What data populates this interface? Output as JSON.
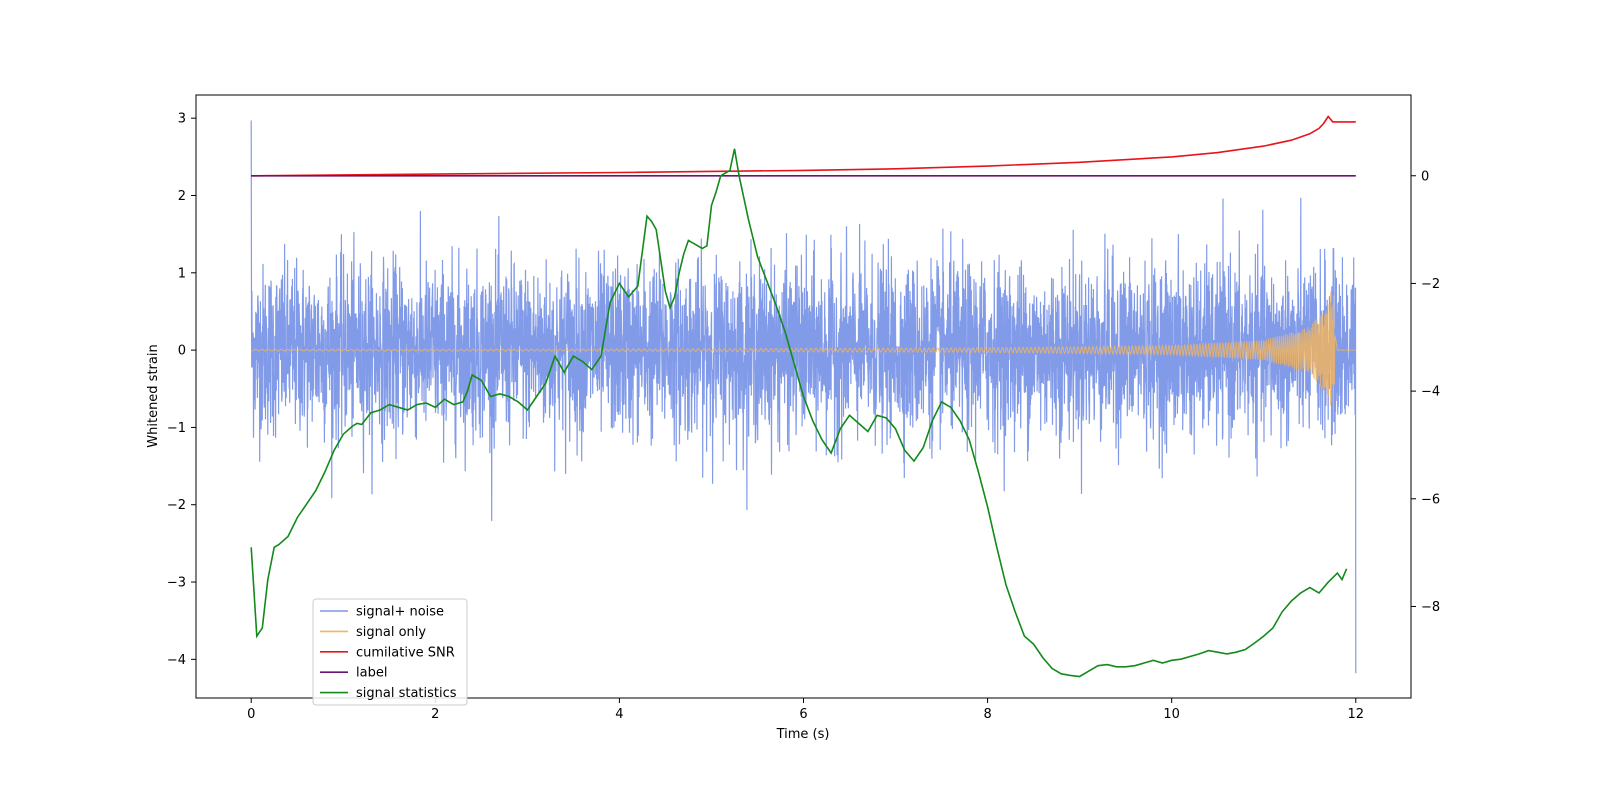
{
  "chart_data": {
    "type": "line",
    "title": "",
    "xlabel": "Time (s)",
    "ylabel_left": "Whitened strain",
    "ylabel_right": "",
    "xlim": [
      -0.6,
      12.6
    ],
    "ylim_left": [
      -4.5,
      3.3
    ],
    "ylim_right": [
      -9.7,
      1.5
    ],
    "x_ticks": [
      0,
      2,
      4,
      6,
      8,
      10,
      12
    ],
    "x_tick_labels": [
      "0",
      "2",
      "4",
      "6",
      "8",
      "10",
      "12"
    ],
    "y_left_ticks": [
      3,
      2,
      1,
      0,
      -1,
      -2,
      -3,
      -4
    ],
    "y_left_tick_labels": [
      "3",
      "2",
      "1",
      "0",
      "−1",
      "−2",
      "−3",
      "−4"
    ],
    "y_right_ticks": [
      0,
      -2,
      -4,
      -6,
      -8
    ],
    "y_right_tick_labels": [
      "0",
      "−2",
      "−4",
      "−6",
      "−8"
    ],
    "legend_position": "lower-left",
    "series": [
      {
        "name": "signal+ noise",
        "color": "#7b96e8",
        "axis": "left",
        "description": "dense noise band, approx amplitude",
        "envelope_upper": 0.85,
        "envelope_lower": -0.85,
        "peak_max": 2.97,
        "peak_min": -4.18,
        "x_range": [
          0,
          12
        ]
      },
      {
        "name": "signal only",
        "color": "#f5b55a",
        "axis": "left",
        "description": "chirp growing toward merger",
        "x": [
          0,
          4,
          8,
          10,
          11,
          11.5,
          11.7,
          11.75,
          11.8,
          12
        ],
        "amplitude": [
          0.01,
          0.015,
          0.03,
          0.06,
          0.13,
          0.3,
          0.6,
          0.9,
          0.0,
          0.0
        ]
      },
      {
        "name": "cumilative SNR",
        "color": "#e8141c",
        "axis": "right",
        "x": [
          0,
          2,
          4,
          6,
          7,
          8,
          9,
          10,
          10.5,
          11,
          11.3,
          11.5,
          11.6,
          11.65,
          11.7,
          11.75,
          12
        ],
        "y": [
          0.0,
          0.03,
          0.06,
          0.1,
          0.13,
          0.18,
          0.25,
          0.35,
          0.43,
          0.55,
          0.66,
          0.78,
          0.88,
          0.97,
          1.1,
          1.0,
          1.0
        ]
      },
      {
        "name": "label",
        "color": "#6b1274",
        "axis": "right",
        "x": [
          0,
          12
        ],
        "y": [
          0.0,
          0.0
        ]
      },
      {
        "name": "signal statistics",
        "color": "#138a1b",
        "axis": "right",
        "x": [
          0.0,
          0.06,
          0.12,
          0.18,
          0.25,
          0.3,
          0.4,
          0.5,
          0.6,
          0.7,
          0.8,
          0.9,
          1.0,
          1.1,
          1.15,
          1.2,
          1.3,
          1.4,
          1.5,
          1.6,
          1.7,
          1.8,
          1.9,
          2.0,
          2.1,
          2.2,
          2.3,
          2.35,
          2.4,
          2.5,
          2.6,
          2.7,
          2.8,
          2.9,
          3.0,
          3.1,
          3.2,
          3.25,
          3.3,
          3.4,
          3.5,
          3.6,
          3.7,
          3.8,
          3.9,
          4.0,
          4.1,
          4.2,
          4.25,
          4.3,
          4.35,
          4.4,
          4.5,
          4.55,
          4.6,
          4.65,
          4.7,
          4.75,
          4.8,
          4.9,
          4.95,
          5.0,
          5.05,
          5.1,
          5.2,
          5.25,
          5.3,
          5.4,
          5.5,
          5.6,
          5.7,
          5.8,
          5.9,
          6.0,
          6.1,
          6.2,
          6.3,
          6.4,
          6.5,
          6.6,
          6.7,
          6.8,
          6.9,
          7.0,
          7.1,
          7.2,
          7.3,
          7.4,
          7.5,
          7.6,
          7.7,
          7.8,
          7.9,
          8.0,
          8.1,
          8.2,
          8.3,
          8.4,
          8.5,
          8.6,
          8.7,
          8.8,
          8.9,
          9.0,
          9.1,
          9.2,
          9.3,
          9.4,
          9.5,
          9.6,
          9.7,
          9.8,
          9.9,
          10.0,
          10.1,
          10.2,
          10.3,
          10.4,
          10.5,
          10.6,
          10.7,
          10.8,
          10.9,
          11.0,
          11.1,
          11.2,
          11.3,
          11.4,
          11.5,
          11.6,
          11.7,
          11.8,
          11.85,
          11.9
        ],
        "y": [
          -6.9,
          -8.55,
          -8.4,
          -7.5,
          -6.9,
          -6.85,
          -6.7,
          -6.35,
          -6.1,
          -5.85,
          -5.5,
          -5.1,
          -4.8,
          -4.65,
          -4.6,
          -4.62,
          -4.4,
          -4.35,
          -4.25,
          -4.3,
          -4.35,
          -4.25,
          -4.22,
          -4.3,
          -4.15,
          -4.25,
          -4.2,
          -4.0,
          -3.7,
          -3.8,
          -4.1,
          -4.05,
          -4.1,
          -4.2,
          -4.35,
          -4.1,
          -3.85,
          -3.6,
          -3.35,
          -3.65,
          -3.35,
          -3.45,
          -3.6,
          -3.35,
          -2.35,
          -2.0,
          -2.25,
          -2.05,
          -1.4,
          -0.75,
          -0.85,
          -1.0,
          -2.15,
          -2.45,
          -2.25,
          -1.8,
          -1.45,
          -1.2,
          -1.25,
          -1.35,
          -1.3,
          -0.55,
          -0.3,
          0.0,
          0.1,
          0.5,
          0.0,
          -0.8,
          -1.5,
          -1.95,
          -2.4,
          -2.9,
          -3.5,
          -4.1,
          -4.55,
          -4.9,
          -5.15,
          -4.7,
          -4.45,
          -4.6,
          -4.75,
          -4.45,
          -4.5,
          -4.7,
          -5.1,
          -5.3,
          -5.05,
          -4.55,
          -4.2,
          -4.3,
          -4.55,
          -4.9,
          -5.5,
          -6.15,
          -6.9,
          -7.6,
          -8.1,
          -8.55,
          -8.7,
          -8.95,
          -9.15,
          -9.25,
          -9.28,
          -9.3,
          -9.2,
          -9.1,
          -9.08,
          -9.12,
          -9.12,
          -9.1,
          -9.05,
          -9.0,
          -9.05,
          -9.0,
          -8.98,
          -8.93,
          -8.88,
          -8.82,
          -8.85,
          -8.88,
          -8.85,
          -8.8,
          -8.68,
          -8.55,
          -8.4,
          -8.1,
          -7.9,
          -7.75,
          -7.65,
          -7.75,
          -7.55,
          -7.38,
          -7.5,
          -7.3
        ]
      }
    ]
  },
  "legend": {
    "items": [
      {
        "label": "signal+ noise",
        "color": "#7b96e8"
      },
      {
        "label": "signal only",
        "color": "#f5b55a"
      },
      {
        "label": "cumilative SNR",
        "color": "#e8141c"
      },
      {
        "label": "label",
        "color": "#6b1274"
      },
      {
        "label": "signal statistics",
        "color": "#138a1b"
      }
    ]
  }
}
